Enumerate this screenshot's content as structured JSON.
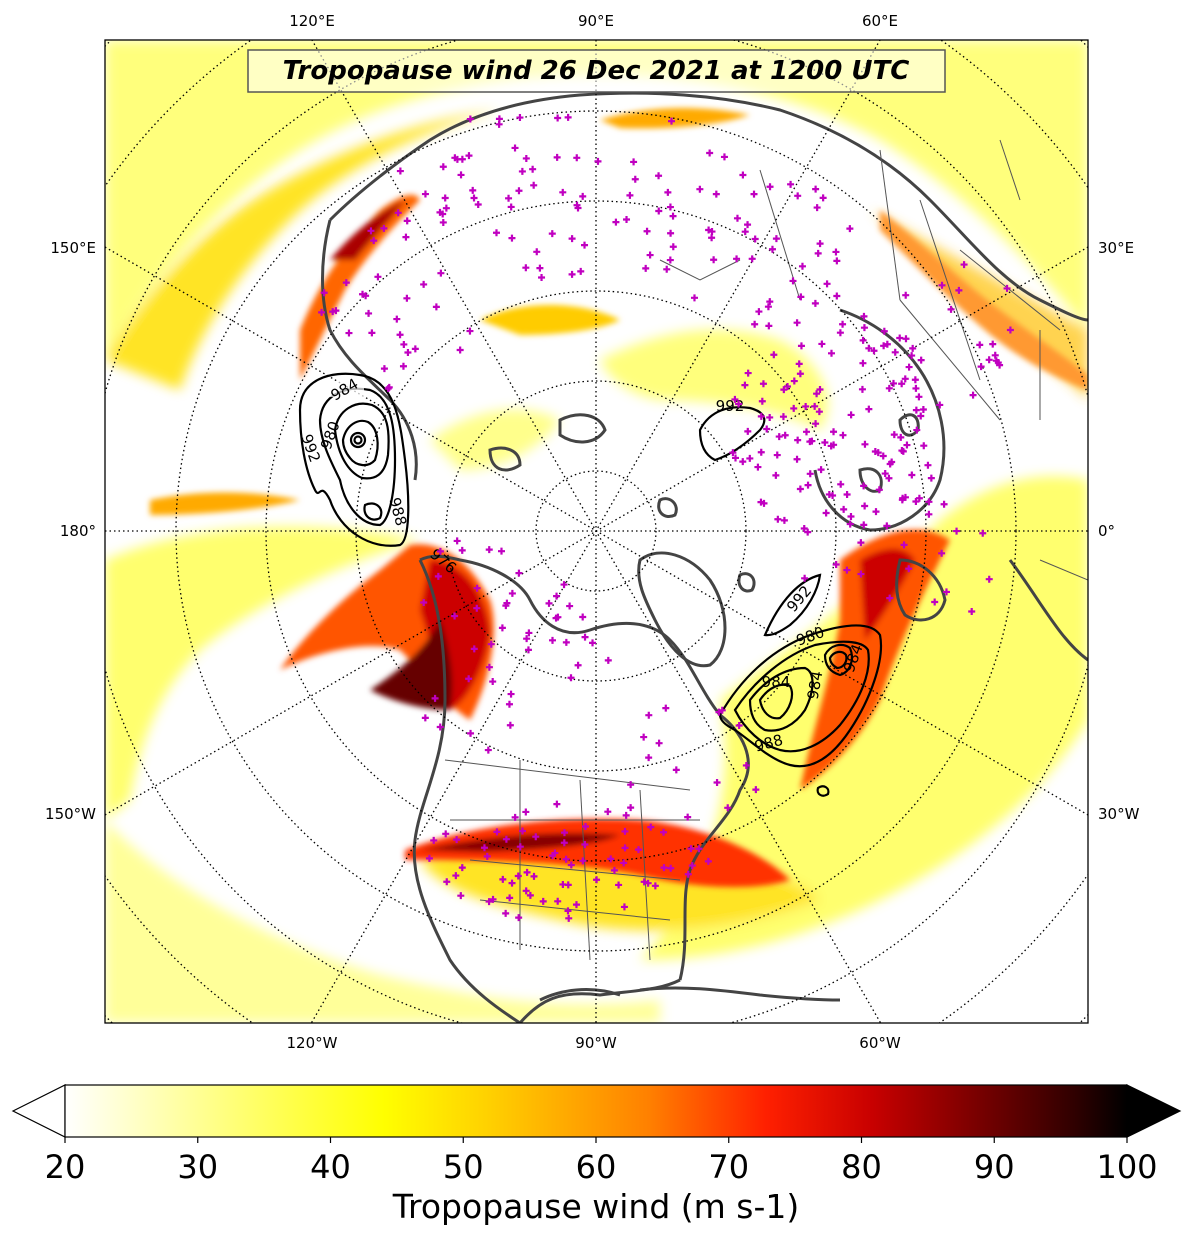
{
  "map": {
    "title": "Tropopause wind 26 Dec 2021 at 1200 UTC",
    "projection": "north-polar-stereographic",
    "background_color": "#ffffff",
    "coastline_color": "#444444",
    "station_marker_color": "#c000c0",
    "station_marker_symbol": "+",
    "lon_labels_top": [
      "120°E",
      "90°E",
      "60°E"
    ],
    "lon_labels_bottom": [
      "120°W",
      "90°W",
      "60°W"
    ],
    "lon_labels_left": [
      "150°E",
      "180°",
      "150°W"
    ],
    "lon_labels_right": [
      "30°E",
      "0°",
      "30°W"
    ]
  },
  "pressure_contours": {
    "units": "hPa",
    "color": "#000000",
    "labels": [
      "984",
      "980",
      "992",
      "988",
      "976",
      "992",
      "992",
      "980",
      "984",
      "984",
      "988"
    ]
  },
  "colorbar": {
    "title": "Tropopause wind (m s-1)",
    "min": 20,
    "max": 100,
    "tick_labels": [
      "20",
      "30",
      "40",
      "50",
      "60",
      "70",
      "80",
      "90",
      "100"
    ],
    "extend": "both",
    "colormap": "hot_r",
    "stops": [
      "#ffffff",
      "#ffff80",
      "#ffff00",
      "#ffd000",
      "#ff8000",
      "#ff2000",
      "#d00000",
      "#800000",
      "#300000",
      "#000000"
    ]
  }
}
